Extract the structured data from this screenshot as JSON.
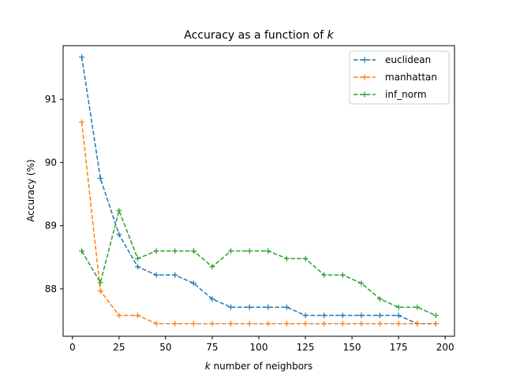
{
  "chart_data": {
    "type": "line",
    "title": "Accuracy as a function of",
    "title_var": "k",
    "xlabel_var": "k",
    "xlabel": " number of neighbors",
    "ylabel": "Accuracy (%)",
    "xlim": [
      -5,
      205
    ],
    "ylim": [
      87.25,
      91.85
    ],
    "xticks": [
      0,
      25,
      50,
      75,
      100,
      125,
      150,
      175,
      200
    ],
    "yticks": [
      88,
      89,
      90,
      91
    ],
    "grid": false,
    "legend_position": "top-right",
    "line_style": "dashed",
    "marker": "+",
    "x": [
      5,
      15,
      25,
      35,
      45,
      55,
      65,
      75,
      85,
      95,
      105,
      115,
      125,
      135,
      145,
      155,
      165,
      175,
      185,
      195
    ],
    "series": [
      {
        "name": "euclidean",
        "color": "#1f77b4",
        "values": [
          91.67,
          89.75,
          88.86,
          88.35,
          88.22,
          88.22,
          88.09,
          87.84,
          87.71,
          87.71,
          87.71,
          87.71,
          87.58,
          87.58,
          87.58,
          87.58,
          87.58,
          87.58,
          87.45,
          87.45
        ]
      },
      {
        "name": "manhattan",
        "color": "#ff7f0e",
        "values": [
          90.64,
          87.97,
          87.58,
          87.58,
          87.45,
          87.45,
          87.45,
          87.45,
          87.45,
          87.45,
          87.45,
          87.45,
          87.45,
          87.45,
          87.45,
          87.45,
          87.45,
          87.45,
          87.45,
          87.45
        ]
      },
      {
        "name": "inf_norm",
        "color": "#2ca02c",
        "values": [
          88.6,
          88.1,
          89.24,
          88.48,
          88.6,
          88.6,
          88.6,
          88.35,
          88.6,
          88.6,
          88.6,
          88.48,
          88.48,
          88.22,
          88.22,
          88.09,
          87.84,
          87.71,
          87.71,
          87.58
        ]
      }
    ]
  }
}
